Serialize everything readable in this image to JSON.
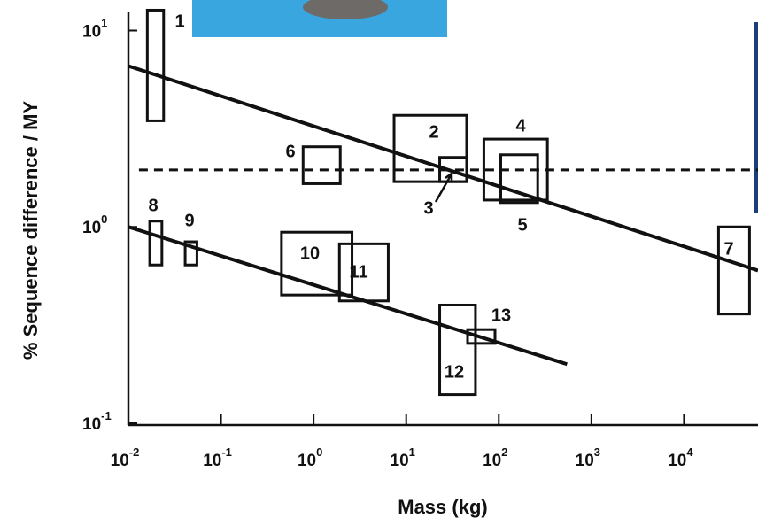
{
  "chart_data": {
    "type": "box-scatter",
    "log_x": true,
    "log_y": true,
    "x_label": "Mass (kg)",
    "y_label": "% Sequence difference / MY",
    "xlim": [
      0.01,
      63000
    ],
    "ylim": [
      0.1,
      12.5
    ],
    "xticks": [
      {
        "value": 0.01,
        "label": "10",
        "exponent": "-2"
      },
      {
        "value": 0.1,
        "label": "10",
        "exponent": "-1"
      },
      {
        "value": 1,
        "label": "10",
        "exponent": "0"
      },
      {
        "value": 10,
        "label": "10",
        "exponent": "1"
      },
      {
        "value": 100,
        "label": "10",
        "exponent": "2"
      },
      {
        "value": 1000,
        "label": "10",
        "exponent": "3"
      },
      {
        "value": 10000,
        "label": "10",
        "exponent": "4"
      }
    ],
    "yticks": [
      {
        "value": 0.1,
        "label": "10",
        "exponent": "-1"
      },
      {
        "value": 1,
        "label": "10",
        "exponent": "0"
      },
      {
        "value": 10,
        "label": "10",
        "exponent": "1"
      }
    ],
    "color": "#111111",
    "boxes": [
      {
        "label": "1",
        "x": [
          0.016,
          0.024
        ],
        "y": [
          3.47,
          12.7
        ]
      },
      {
        "label": "2",
        "x": [
          7.4,
          45
        ],
        "y": [
          1.7,
          3.7
        ]
      },
      {
        "label": "3",
        "x": [
          23,
          45
        ],
        "y": [
          1.7,
          2.26
        ]
      },
      {
        "label": "4",
        "x": [
          69,
          335
        ],
        "y": [
          1.37,
          2.8
        ]
      },
      {
        "label": "5",
        "x": [
          105,
          263
        ],
        "y": [
          1.33,
          2.33
        ]
      },
      {
        "label": "6",
        "x": [
          0.77,
          1.94
        ],
        "y": [
          1.66,
          2.56
        ]
      },
      {
        "label": "7",
        "x": [
          23600,
          51000
        ],
        "y": [
          0.36,
          1.0
        ]
      },
      {
        "label": "8",
        "x": [
          0.017,
          0.023
        ],
        "y": [
          0.64,
          1.07
        ]
      },
      {
        "label": "9",
        "x": [
          0.041,
          0.055
        ],
        "y": [
          0.64,
          0.84
        ]
      },
      {
        "label": "10",
        "x": [
          0.45,
          2.6
        ],
        "y": [
          0.45,
          0.94
        ]
      },
      {
        "label": "11",
        "x": [
          1.9,
          6.4
        ],
        "y": [
          0.42,
          0.82
        ]
      },
      {
        "label": "12",
        "x": [
          23,
          56
        ],
        "y": [
          0.14,
          0.4
        ]
      },
      {
        "label": "13",
        "x": [
          46,
          91
        ],
        "y": [
          0.255,
          0.3
        ]
      }
    ],
    "lines": [
      {
        "style": "solid",
        "x": [
          0.01,
          63000
        ],
        "y": [
          6.6,
          0.6
        ]
      },
      {
        "style": "solid",
        "x": [
          0.01,
          546
        ],
        "y": [
          1.0,
          0.2
        ]
      },
      {
        "style": "dashed",
        "x": [
          0.013,
          63000
        ],
        "y": [
          1.95,
          1.95
        ]
      }
    ]
  }
}
